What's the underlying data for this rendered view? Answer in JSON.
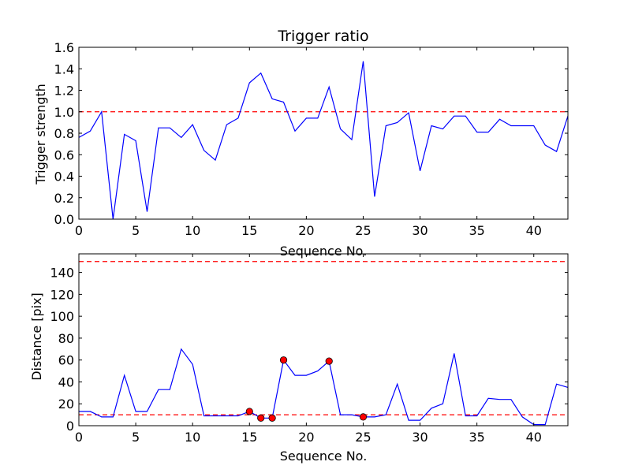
{
  "chart_data": [
    {
      "type": "line",
      "title": "Trigger ratio",
      "xlabel": "Sequence No.",
      "ylabel": "Trigger strength",
      "xlim": [
        0,
        43
      ],
      "ylim": [
        0,
        1.6
      ],
      "xticks": [
        0,
        5,
        10,
        15,
        20,
        25,
        30,
        35,
        40
      ],
      "yticks": [
        0.0,
        0.2,
        0.4,
        0.6,
        0.8,
        1.0,
        1.2,
        1.4,
        1.6
      ],
      "x": [
        0,
        1,
        2,
        3,
        4,
        5,
        6,
        7,
        8,
        9,
        10,
        11,
        12,
        13,
        14,
        15,
        16,
        17,
        18,
        19,
        20,
        21,
        22,
        23,
        24,
        25,
        26,
        27,
        28,
        29,
        30,
        31,
        32,
        33,
        34,
        35,
        36,
        37,
        38,
        39,
        40,
        41,
        42,
        43
      ],
      "series": [
        {
          "name": "Trigger strength",
          "color": "#0000ff",
          "values": [
            0.76,
            0.82,
            1.0,
            0.0,
            0.79,
            0.73,
            0.07,
            0.85,
            0.85,
            0.76,
            0.88,
            0.64,
            0.55,
            0.88,
            0.94,
            1.27,
            1.36,
            1.12,
            1.09,
            0.82,
            0.94,
            0.94,
            1.23,
            0.84,
            0.74,
            1.47,
            0.21,
            0.87,
            0.9,
            0.99,
            0.45,
            0.87,
            0.84,
            0.96,
            0.96,
            0.81,
            0.81,
            0.93,
            0.87,
            0.87,
            0.87,
            0.69,
            0.63,
            0.96
          ]
        }
      ],
      "reference_lines": [
        {
          "y": 1.0,
          "color": "#ff0000",
          "style": "dashed"
        }
      ],
      "yticklabels": [
        "0.0",
        "0.2",
        "0.4",
        "0.6",
        "0.8",
        "1.0",
        "1.2",
        "1.4",
        "1.6"
      ]
    },
    {
      "type": "line",
      "title": "",
      "xlabel": "Sequence No.",
      "ylabel": "Distance [pix]",
      "xlim": [
        0,
        43
      ],
      "ylim": [
        0,
        157
      ],
      "xticks": [
        0,
        5,
        10,
        15,
        20,
        25,
        30,
        35,
        40
      ],
      "yticks": [
        0,
        20,
        40,
        60,
        80,
        100,
        120,
        140
      ],
      "x": [
        0,
        1,
        2,
        3,
        4,
        5,
        6,
        7,
        8,
        9,
        10,
        11,
        12,
        13,
        14,
        15,
        16,
        17,
        18,
        19,
        20,
        21,
        22,
        23,
        24,
        25,
        26,
        27,
        28,
        29,
        30,
        31,
        32,
        33,
        34,
        35,
        36,
        37,
        38,
        39,
        40,
        41,
        42,
        43
      ],
      "series": [
        {
          "name": "Distance",
          "color": "#0000ff",
          "values": [
            13,
            13,
            8,
            8,
            46,
            13,
            13,
            33,
            33,
            70,
            56,
            9,
            9,
            9,
            9,
            13,
            7,
            7,
            60,
            46,
            46,
            50,
            59,
            10,
            10,
            8,
            8,
            10,
            38,
            5,
            5,
            16,
            20,
            66,
            9,
            9,
            25,
            24,
            24,
            8,
            1,
            1,
            38,
            35
          ]
        }
      ],
      "markers": {
        "color": "#ff0000",
        "x": [
          15,
          16,
          17,
          18,
          22,
          25
        ],
        "y": [
          13,
          7,
          7,
          60,
          59,
          8
        ]
      },
      "reference_lines": [
        {
          "y": 150,
          "color": "#ff0000",
          "style": "dashed"
        },
        {
          "y": 10,
          "color": "#ff0000",
          "style": "dashed"
        }
      ],
      "yticklabels": [
        "0",
        "20",
        "40",
        "60",
        "80",
        "100",
        "120",
        "140"
      ]
    }
  ]
}
